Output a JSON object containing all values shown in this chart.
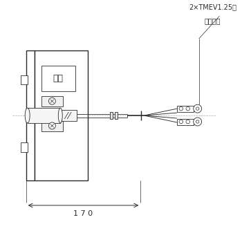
{
  "bg_color": "#ffffff",
  "line_color": "#2a2a2a",
  "dash_color": "#aaaaaa",
  "title_label1": "2×TMEV1.25４",
  "title_label2": "圧着端子",
  "nameplate_label": "銘板",
  "dim_label": "1 7 0",
  "fig_w": 3.5,
  "fig_h": 3.5,
  "dpi": 100
}
